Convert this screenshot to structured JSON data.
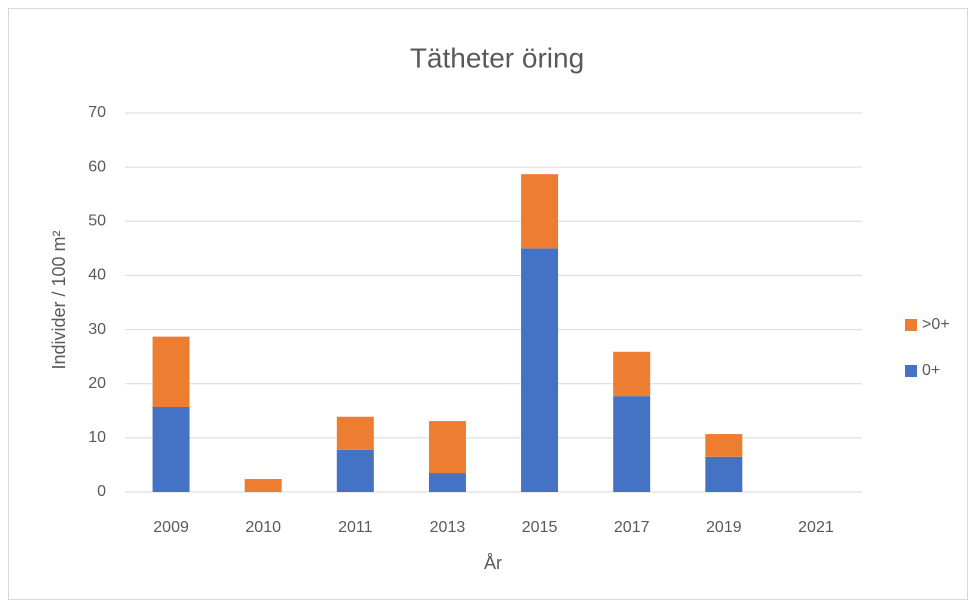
{
  "chart_data": {
    "type": "stacked_bar",
    "title": "Tätheter öring",
    "x_label": "År",
    "y_label": "Individer / 100 m²",
    "categories": [
      "2009",
      "2010",
      "2011",
      "2013",
      "2015",
      "2017",
      "2019",
      "2021"
    ],
    "series": [
      {
        "name": "0+",
        "color": "#4472c4",
        "values": [
          15.7,
          0,
          7.8,
          3.5,
          45,
          17.7,
          6.5,
          0
        ]
      },
      {
        "name": ">0+",
        "color": "#ed7d31",
        "values": [
          13,
          2.4,
          6.1,
          9.6,
          13.7,
          8.2,
          4.2,
          0
        ]
      }
    ],
    "ylim": [
      0,
      70
    ],
    "yticks": [
      0,
      10,
      20,
      30,
      40,
      50,
      60,
      70
    ],
    "grid": true,
    "legend": "right"
  }
}
